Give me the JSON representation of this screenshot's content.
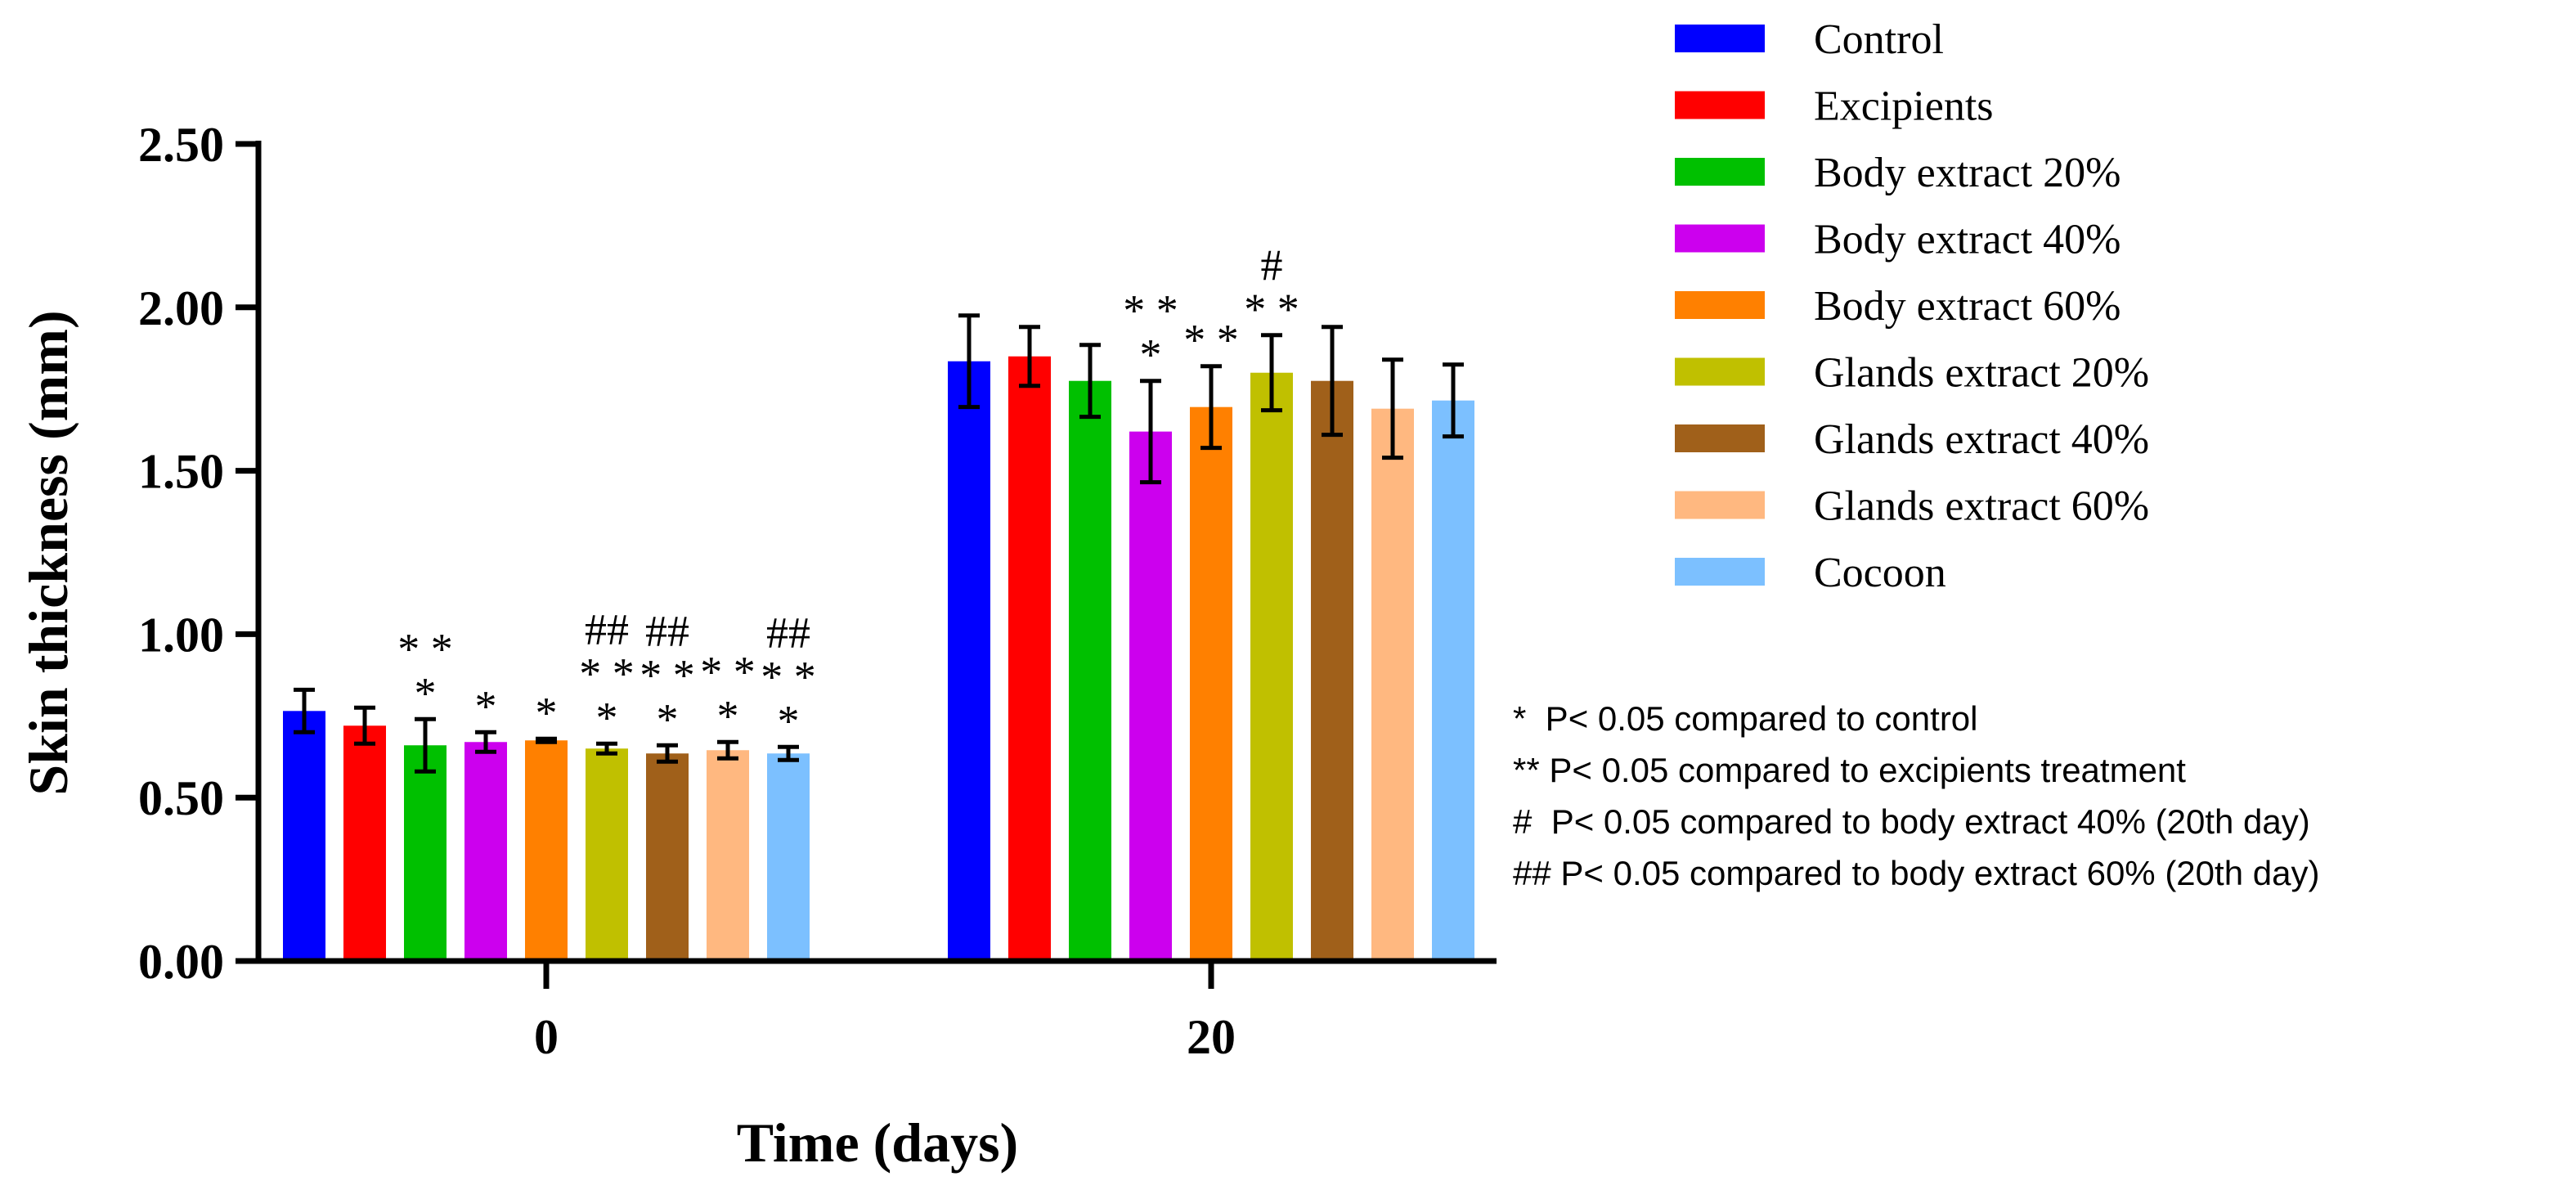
{
  "chart_data": {
    "type": "bar",
    "title": "",
    "xlabel": "Time (days)",
    "ylabel": "Skin thickness (mm)",
    "ylim": [
      0,
      2.5
    ],
    "yticks": [
      "0.00",
      "0.50",
      "1.00",
      "1.50",
      "2.00",
      "2.50"
    ],
    "categories": [
      "0",
      "20"
    ],
    "grid": false,
    "legend_position": "top-right",
    "series": [
      {
        "name": "Control",
        "color": "#0000ff",
        "values": [
          0.765,
          1.835
        ],
        "errors": [
          0.065,
          0.14
        ]
      },
      {
        "name": "Excipients",
        "color": "#ff0000",
        "values": [
          0.72,
          1.85
        ],
        "errors": [
          0.055,
          0.09
        ]
      },
      {
        "name": "Body extract 20%",
        "color": "#00c000",
        "values": [
          0.66,
          1.775
        ],
        "errors": [
          0.08,
          0.11
        ]
      },
      {
        "name": "Body extract 40%",
        "color": "#cc00ee",
        "values": [
          0.67,
          1.62
        ],
        "errors": [
          0.03,
          0.155
        ]
      },
      {
        "name": "Body extract 60%",
        "color": "#ff8000",
        "values": [
          0.675,
          1.695
        ],
        "errors": [
          0.005,
          0.125
        ]
      },
      {
        "name": "Glands extract 20%",
        "color": "#c0c000",
        "values": [
          0.65,
          1.8
        ],
        "errors": [
          0.015,
          0.115
        ]
      },
      {
        "name": "Glands extract 40%",
        "color": "#a0601a",
        "values": [
          0.635,
          1.775
        ],
        "errors": [
          0.025,
          0.165
        ]
      },
      {
        "name": "Glands extract 60%",
        "color": "#ffb880",
        "values": [
          0.645,
          1.69
        ],
        "errors": [
          0.025,
          0.15
        ]
      },
      {
        "name": "Cocoon",
        "color": "#7cc0ff",
        "values": [
          0.635,
          1.715
        ],
        "errors": [
          0.02,
          0.11
        ]
      }
    ],
    "annotations": [
      {
        "category": 0,
        "series": 0,
        "lines": []
      },
      {
        "category": 0,
        "series": 1,
        "lines": []
      },
      {
        "category": 0,
        "series": 2,
        "lines": [
          "* *",
          "*"
        ]
      },
      {
        "category": 0,
        "series": 3,
        "lines": [
          "*"
        ]
      },
      {
        "category": 0,
        "series": 4,
        "lines": [
          "*"
        ]
      },
      {
        "category": 0,
        "series": 5,
        "lines": [
          "##",
          "* *",
          "*"
        ]
      },
      {
        "category": 0,
        "series": 6,
        "lines": [
          "##",
          "* *",
          "*"
        ]
      },
      {
        "category": 0,
        "series": 7,
        "lines": [
          "* *",
          "*"
        ]
      },
      {
        "category": 0,
        "series": 8,
        "lines": [
          "##",
          "* *",
          "*"
        ]
      },
      {
        "category": 1,
        "series": 3,
        "lines": [
          "* *",
          "*"
        ]
      },
      {
        "category": 1,
        "series": 4,
        "lines": [
          "* *"
        ]
      },
      {
        "category": 1,
        "series": 5,
        "lines": [
          "#",
          "* *"
        ]
      }
    ],
    "notes": [
      "*  P< 0.05 compared to control",
      "** P< 0.05 compared to excipients treatment",
      "#  P< 0.05 compared to body extract 40% (20th day)",
      "## P< 0.05 compared to body extract 60% (20th day)"
    ]
  }
}
